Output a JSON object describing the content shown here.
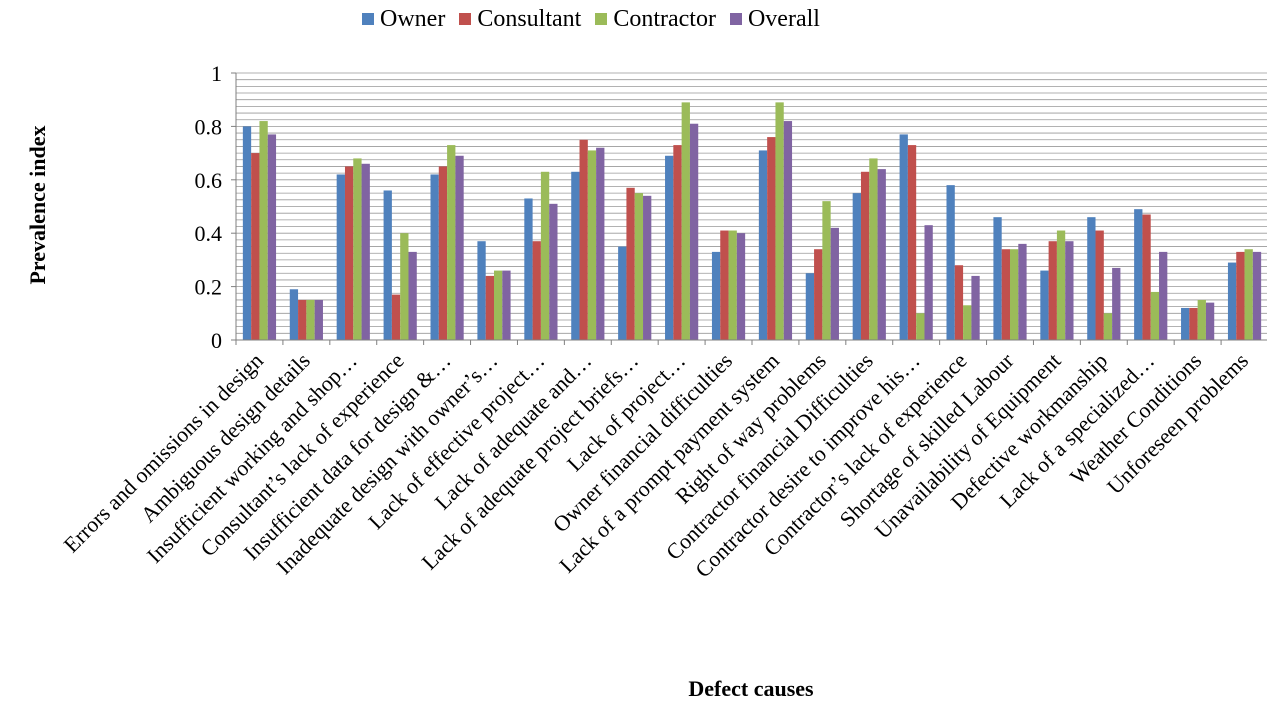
{
  "chart_data": {
    "type": "bar",
    "title": "",
    "xlabel": "Defect causes",
    "ylabel": "Prevalence index",
    "ylim": [
      0,
      1
    ],
    "yticks": [
      "0",
      "0.2",
      "0.4",
      "0.6",
      "0.8",
      "1"
    ],
    "grid": true,
    "legend_position": "top",
    "categories": [
      "Errors and omissions in design",
      "Ambiguous design details",
      "Insufficient working and shop…",
      "Consultant’s lack of experience",
      "Insufficient data for design &…",
      "Inadequate design with owner’s…",
      "Lack of effective project…",
      "Lack of adequate and…",
      "Lack of adequate project briefs…",
      "Lack of project…",
      "Owner financial difficulties",
      "Lack of a prompt payment system",
      "Right of way problems",
      "Contractor financial Difficulties",
      "Contractor desire to improve his…",
      "Contractor’s lack of experience",
      "Shortage of skilled Labour",
      "Unavailability of Equipment",
      "Defective workmanship",
      "Lack of a specialized…",
      "Weather Conditions",
      "Unforeseen problems"
    ],
    "series": [
      {
        "name": "Owner",
        "color": "#4F81BD",
        "values": [
          0.8,
          0.19,
          0.62,
          0.56,
          0.62,
          0.37,
          0.53,
          0.63,
          0.35,
          0.69,
          0.33,
          0.71,
          0.25,
          0.55,
          0.77,
          0.58,
          0.46,
          0.26,
          0.46,
          0.49,
          0.12,
          0.29
        ]
      },
      {
        "name": "Consultant",
        "color": "#C0504D",
        "values": [
          0.7,
          0.15,
          0.65,
          0.17,
          0.65,
          0.24,
          0.37,
          0.75,
          0.57,
          0.73,
          0.41,
          0.76,
          0.34,
          0.63,
          0.73,
          0.28,
          0.34,
          0.37,
          0.41,
          0.47,
          0.12,
          0.33
        ]
      },
      {
        "name": "Contractor",
        "color": "#9BBB59",
        "values": [
          0.82,
          0.15,
          0.68,
          0.4,
          0.73,
          0.26,
          0.63,
          0.71,
          0.55,
          0.89,
          0.41,
          0.89,
          0.52,
          0.68,
          0.1,
          0.13,
          0.34,
          0.41,
          0.1,
          0.18,
          0.15,
          0.34
        ]
      },
      {
        "name": "Overall",
        "color": "#8064A2",
        "values": [
          0.77,
          0.15,
          0.66,
          0.33,
          0.69,
          0.26,
          0.51,
          0.72,
          0.54,
          0.81,
          0.4,
          0.82,
          0.42,
          0.64,
          0.43,
          0.24,
          0.36,
          0.37,
          0.27,
          0.33,
          0.14,
          0.33
        ]
      }
    ]
  }
}
